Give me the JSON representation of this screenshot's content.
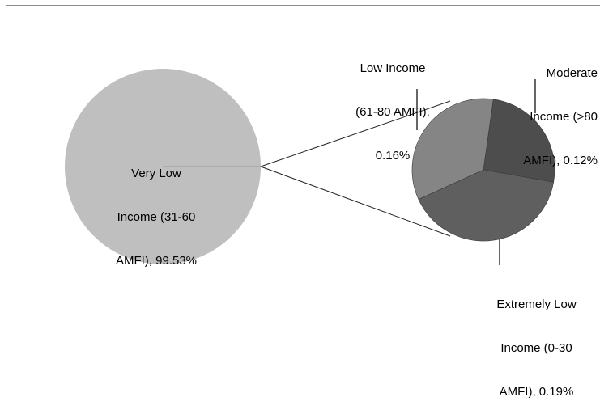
{
  "chart_data": {
    "type": "pie",
    "subtype": "pie-of-pie",
    "main_slice": {
      "label": "Very Low Income (31-60 AMFI), 99.53%",
      "value": 99.53,
      "color": "#bfbfbf"
    },
    "secondary_slices": [
      {
        "label": "Moderate Income (>80 AMFI), 0.12%",
        "value": 0.12,
        "color": "#4d4d4d"
      },
      {
        "label": "Extremely Low Income (0-30 AMFI), 0.19%",
        "value": 0.19,
        "color": "#5f5f5f"
      },
      {
        "label": "Low Income (61-80 AMFI), 0.16%",
        "value": 0.16,
        "color": "#858585"
      }
    ],
    "label_lines": {
      "very_low": [
        "Very Low",
        "Income (31-60",
        "AMFI), 99.53%"
      ],
      "low": [
        "Low Income",
        "(61-80 AMFI),",
        "0.16%"
      ],
      "moderate": [
        "Moderate",
        "Income (>80",
        "AMFI), 0.12%"
      ],
      "extremely_low": [
        "Extremely Low",
        "Income (0-30",
        "AMFI), 0.19%"
      ]
    },
    "title": "",
    "legend": "none"
  }
}
